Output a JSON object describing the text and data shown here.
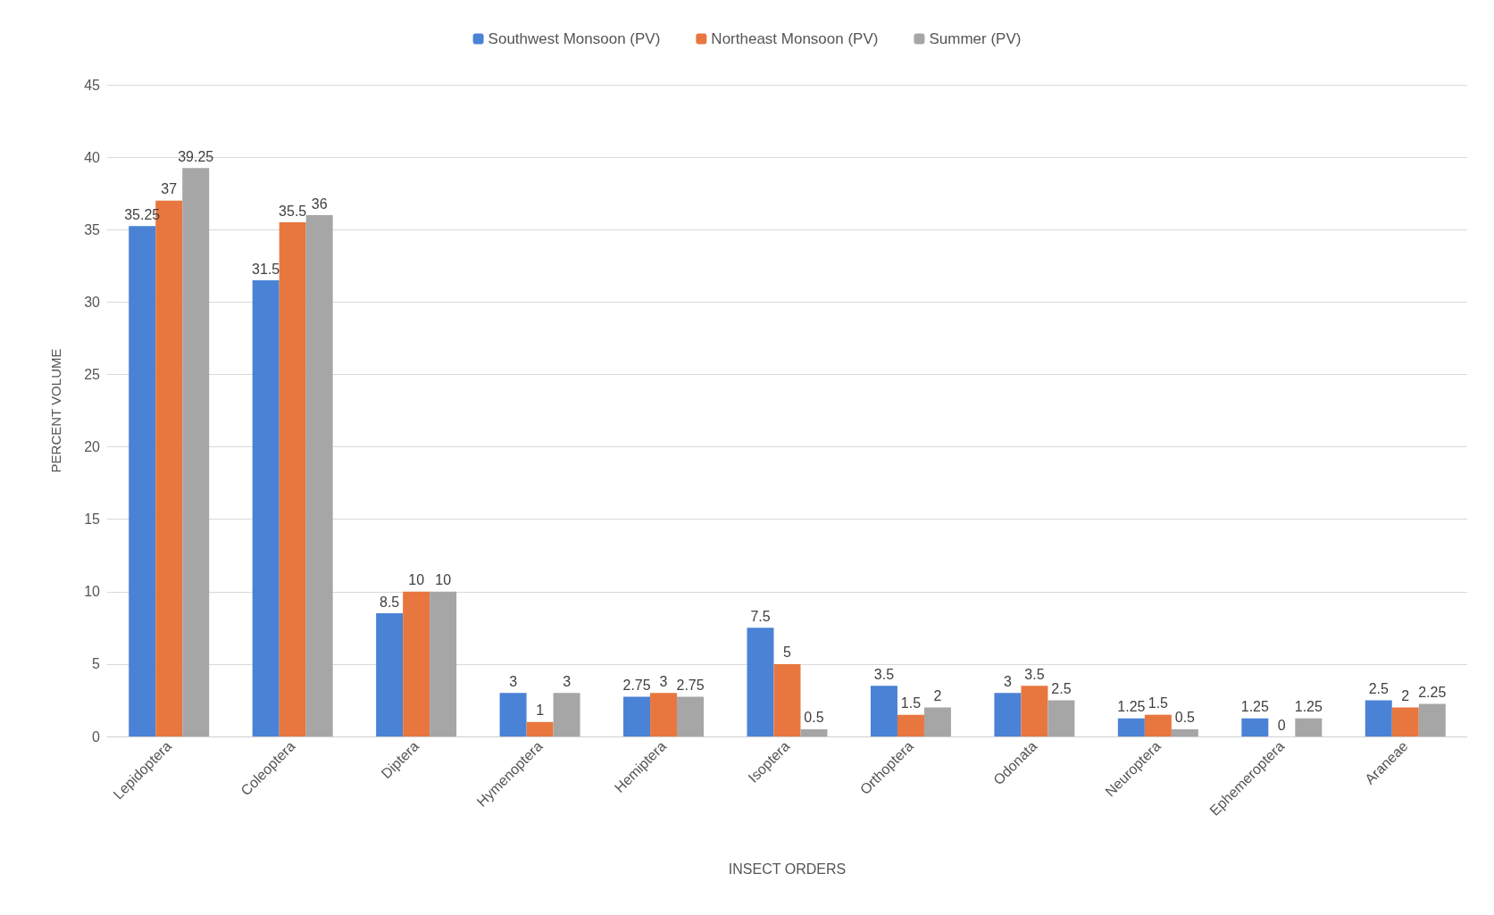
{
  "chart_data": {
    "type": "bar",
    "xlabel": "INSECT ORDERS",
    "ylabel": "PERCENT VOLUME",
    "categories": [
      "Lepidoptera",
      "Coleoptera",
      "Diptera",
      "Hymenoptera",
      "Hemiptera",
      "Isoptera",
      "Orthoptera",
      "Odonata",
      "Neuroptera",
      "Ephemeroptera",
      "Araneae"
    ],
    "series": [
      {
        "name": "Southwest Monsoon (PV)",
        "color": "#4a82d6",
        "values": [
          35.25,
          31.5,
          8.5,
          3,
          2.75,
          7.5,
          3.5,
          3,
          1.25,
          1.25,
          2.5
        ]
      },
      {
        "name": "Northeast Monsoon (PV)",
        "color": "#e8773f",
        "values": [
          37,
          35.5,
          10,
          1,
          3,
          5,
          1.5,
          3.5,
          1.5,
          0,
          2
        ]
      },
      {
        "name": "Summer (PV)",
        "color": "#a6a6a6",
        "values": [
          39.25,
          36,
          10,
          3,
          2.75,
          0.5,
          2,
          2.5,
          0.5,
          1.25,
          2.25
        ]
      }
    ],
    "ylim": [
      0,
      45
    ],
    "yticks": [
      0,
      5,
      10,
      15,
      20,
      25,
      30,
      35,
      40,
      45
    ],
    "grid": "y",
    "legend": "top",
    "data_labels": true
  }
}
